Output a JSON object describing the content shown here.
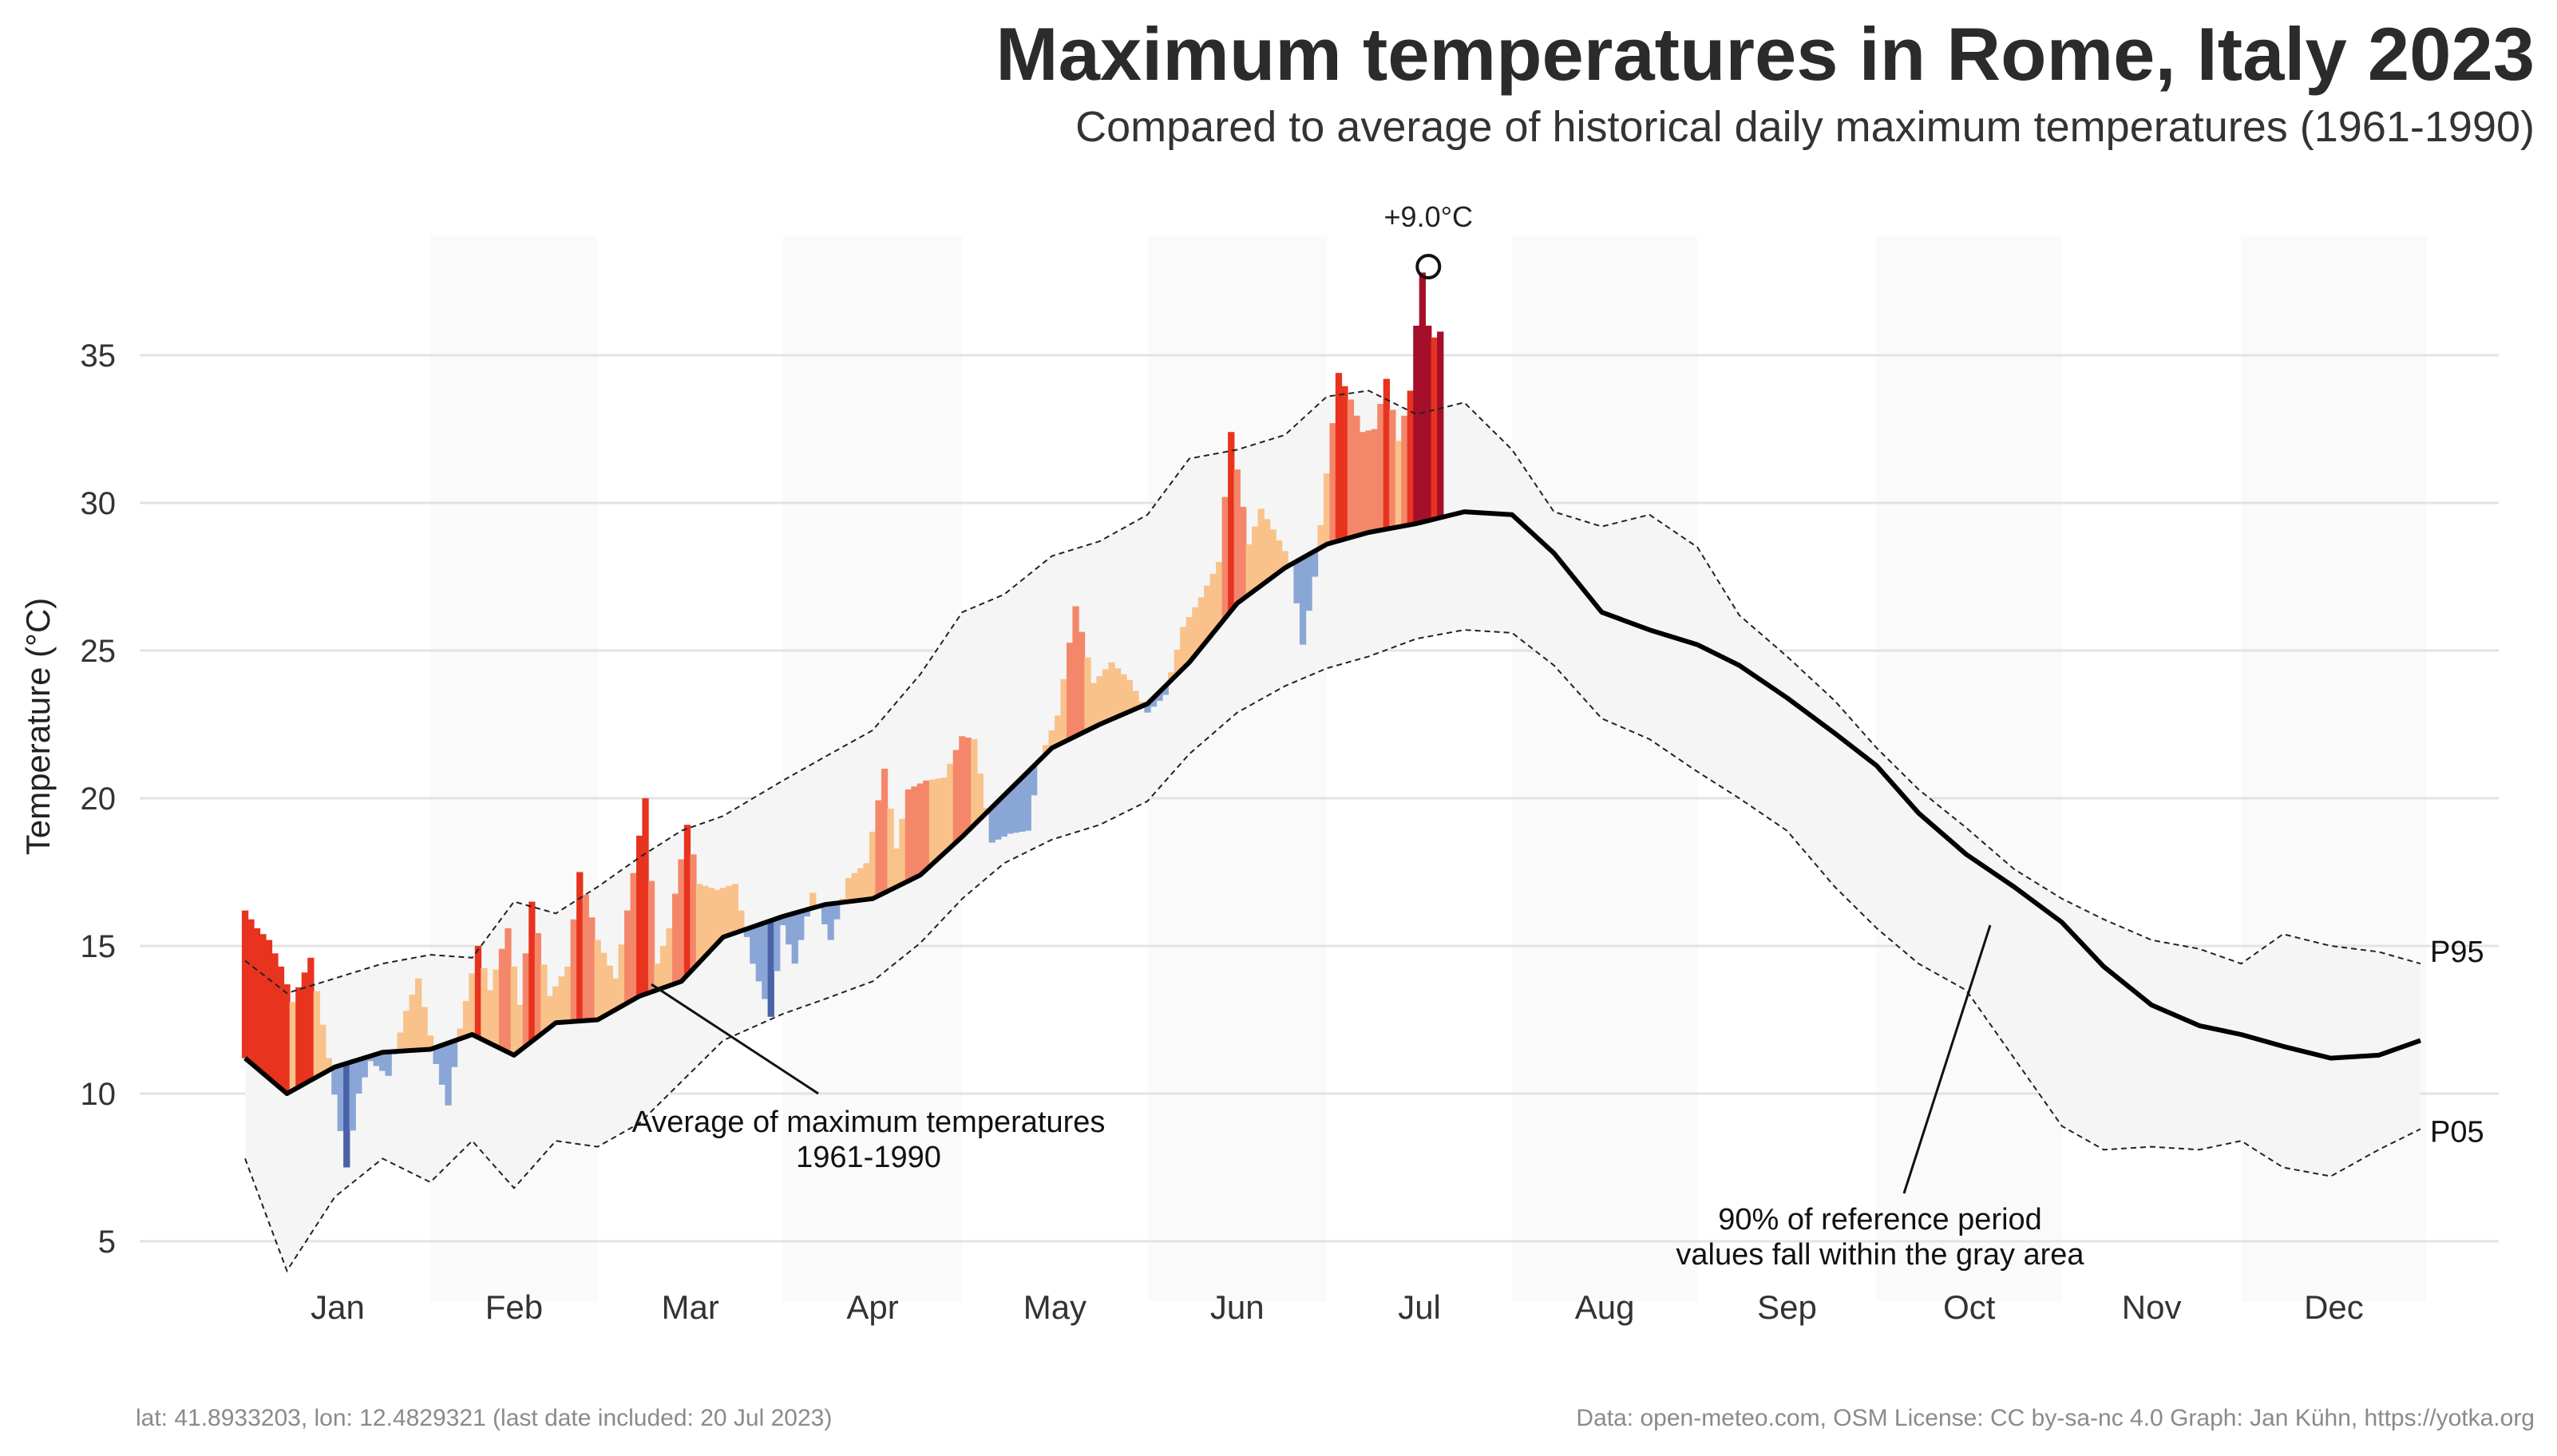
{
  "title": "Maximum temperatures in Rome, Italy 2023",
  "subtitle": "Compared to average of historical daily maximum temperatures (1961-1990)",
  "footer": {
    "left": "lat: 41.8933203, lon: 12.4829321 (last date included: 20 Jul 2023)",
    "right": "Data: open-meteo.com, OSM  License: CC by-sa-nc 4.0  Graph: Jan Kühn, https://yotka.org"
  },
  "colors": {
    "above_light": "#f9c28a",
    "above_mid": "#f4876a",
    "above_strong": "#e8331f",
    "above_extreme": "#a50f2a",
    "below_light": "#8aa6d6",
    "below_strong": "#1a2d7a",
    "band": "#f5f5f5",
    "mean": "#000000"
  },
  "chart_data": {
    "type": "area",
    "ylabel": "Temperature (°C)",
    "ylim": [
      3.5,
      38.5
    ],
    "yticks": [
      5,
      10,
      15,
      20,
      25,
      30,
      35
    ],
    "months": [
      "Jan",
      "Feb",
      "Mar",
      "Apr",
      "May",
      "Jun",
      "Jul",
      "Aug",
      "Sep",
      "Oct",
      "Nov",
      "Dec"
    ],
    "grid": "horizontal",
    "shaded_months": [
      "Feb",
      "Apr",
      "Jun",
      "Aug",
      "Oct",
      "Dec"
    ],
    "series": [
      {
        "name": "Average of maximum temperatures 1961-1990",
        "x": [
          "2023-01-01",
          "2023-01-08",
          "2023-01-16",
          "2023-01-24",
          "2023-02-01",
          "2023-02-08",
          "2023-02-15",
          "2023-02-22",
          "2023-03-01",
          "2023-03-08",
          "2023-03-15",
          "2023-03-22",
          "2023-04-01",
          "2023-04-08",
          "2023-04-16",
          "2023-04-24",
          "2023-05-01",
          "2023-05-08",
          "2023-05-16",
          "2023-05-24",
          "2023-06-01",
          "2023-06-08",
          "2023-06-16",
          "2023-06-24",
          "2023-07-01",
          "2023-07-08",
          "2023-07-16",
          "2023-07-24",
          "2023-08-01",
          "2023-08-08",
          "2023-08-16",
          "2023-08-24",
          "2023-09-01",
          "2023-09-08",
          "2023-09-16",
          "2023-09-24",
          "2023-10-01",
          "2023-10-08",
          "2023-10-16",
          "2023-10-24",
          "2023-11-01",
          "2023-11-08",
          "2023-11-16",
          "2023-11-24",
          "2023-12-01",
          "2023-12-08",
          "2023-12-16",
          "2023-12-24",
          "2023-12-31"
        ],
        "values": [
          11.2,
          10.0,
          10.9,
          11.4,
          11.5,
          12.0,
          11.3,
          12.4,
          12.5,
          13.3,
          13.8,
          15.3,
          16.0,
          16.4,
          16.6,
          17.4,
          18.7,
          20.1,
          21.7,
          22.5,
          23.2,
          24.6,
          26.6,
          27.8,
          28.6,
          29.0,
          29.3,
          29.7,
          29.6,
          28.3,
          26.3,
          25.7,
          25.2,
          24.5,
          23.4,
          22.2,
          21.1,
          19.5,
          18.1,
          17.0,
          15.8,
          14.3,
          13.0,
          12.3,
          12.0,
          11.6,
          11.2,
          11.3,
          11.8
        ]
      },
      {
        "name": "P95",
        "x": [
          "2023-01-01",
          "2023-01-08",
          "2023-01-16",
          "2023-01-24",
          "2023-02-01",
          "2023-02-08",
          "2023-02-15",
          "2023-02-22",
          "2023-03-01",
          "2023-03-08",
          "2023-03-15",
          "2023-03-22",
          "2023-04-01",
          "2023-04-08",
          "2023-04-16",
          "2023-04-24",
          "2023-05-01",
          "2023-05-08",
          "2023-05-16",
          "2023-05-24",
          "2023-06-01",
          "2023-06-08",
          "2023-06-16",
          "2023-06-24",
          "2023-07-01",
          "2023-07-08",
          "2023-07-16",
          "2023-07-24",
          "2023-08-01",
          "2023-08-08",
          "2023-08-16",
          "2023-08-24",
          "2023-09-01",
          "2023-09-08",
          "2023-09-16",
          "2023-09-24",
          "2023-10-01",
          "2023-10-08",
          "2023-10-16",
          "2023-10-24",
          "2023-11-01",
          "2023-11-08",
          "2023-11-16",
          "2023-11-24",
          "2023-12-01",
          "2023-12-08",
          "2023-12-16",
          "2023-12-24",
          "2023-12-31"
        ],
        "values": [
          14.5,
          13.4,
          13.9,
          14.4,
          14.7,
          14.6,
          16.5,
          16.1,
          17.0,
          18.0,
          18.9,
          19.4,
          20.6,
          21.4,
          22.3,
          24.2,
          26.3,
          26.9,
          28.2,
          28.7,
          29.6,
          31.5,
          31.8,
          32.3,
          33.6,
          33.8,
          33.0,
          33.4,
          31.8,
          29.7,
          29.2,
          29.6,
          28.5,
          26.2,
          24.8,
          23.3,
          21.7,
          20.3,
          19.0,
          17.6,
          16.6,
          15.9,
          15.2,
          14.9,
          14.4,
          15.4,
          15.0,
          14.8,
          14.4
        ]
      },
      {
        "name": "P05",
        "x": [
          "2023-01-01",
          "2023-01-08",
          "2023-01-16",
          "2023-01-24",
          "2023-02-01",
          "2023-02-08",
          "2023-02-15",
          "2023-02-22",
          "2023-03-01",
          "2023-03-08",
          "2023-03-15",
          "2023-03-22",
          "2023-04-01",
          "2023-04-08",
          "2023-04-16",
          "2023-04-24",
          "2023-05-01",
          "2023-05-08",
          "2023-05-16",
          "2023-05-24",
          "2023-06-01",
          "2023-06-08",
          "2023-06-16",
          "2023-06-24",
          "2023-07-01",
          "2023-07-08",
          "2023-07-16",
          "2023-07-24",
          "2023-08-01",
          "2023-08-08",
          "2023-08-16",
          "2023-08-24",
          "2023-09-01",
          "2023-09-08",
          "2023-09-16",
          "2023-09-24",
          "2023-10-01",
          "2023-10-08",
          "2023-10-16",
          "2023-10-24",
          "2023-11-01",
          "2023-11-08",
          "2023-11-16",
          "2023-11-24",
          "2023-12-01",
          "2023-12-08",
          "2023-12-16",
          "2023-12-24",
          "2023-12-31"
        ],
        "values": [
          7.8,
          4.0,
          6.5,
          7.8,
          7.0,
          8.4,
          6.8,
          8.4,
          8.2,
          9.0,
          10.4,
          11.8,
          12.7,
          13.2,
          13.8,
          15.1,
          16.6,
          17.8,
          18.6,
          19.1,
          19.9,
          21.5,
          22.9,
          23.8,
          24.4,
          24.8,
          25.4,
          25.7,
          25.6,
          24.5,
          22.7,
          22.0,
          20.9,
          20.0,
          18.9,
          17.0,
          15.6,
          14.4,
          13.5,
          11.2,
          8.9,
          8.1,
          8.2,
          8.1,
          8.4,
          7.5,
          7.2,
          8.1,
          8.8
        ]
      },
      {
        "name": "2023",
        "x": [
          "2023-01-01",
          "2023-01-03",
          "2023-01-05",
          "2023-01-07",
          "2023-01-09",
          "2023-01-12",
          "2023-01-15",
          "2023-01-18",
          "2023-01-20",
          "2023-01-22",
          "2023-01-25",
          "2023-01-28",
          "2023-01-30",
          "2023-02-02",
          "2023-02-04",
          "2023-02-06",
          "2023-02-09",
          "2023-02-11",
          "2023-02-14",
          "2023-02-16",
          "2023-02-18",
          "2023-02-21",
          "2023-02-24",
          "2023-02-26",
          "2023-03-01",
          "2023-03-04",
          "2023-03-06",
          "2023-03-09",
          "2023-03-11",
          "2023-03-13",
          "2023-03-16",
          "2023-03-18",
          "2023-03-21",
          "2023-03-24",
          "2023-03-27",
          "2023-03-30",
          "2023-04-01",
          "2023-04-03",
          "2023-04-06",
          "2023-04-09",
          "2023-04-12",
          "2023-04-15",
          "2023-04-18",
          "2023-04-20",
          "2023-04-22",
          "2023-04-25",
          "2023-04-28",
          "2023-05-01",
          "2023-05-03",
          "2023-05-06",
          "2023-05-09",
          "2023-05-12",
          "2023-05-14",
          "2023-05-17",
          "2023-05-20",
          "2023-05-23",
          "2023-05-26",
          "2023-05-29",
          "2023-06-01",
          "2023-06-04",
          "2023-06-07",
          "2023-06-10",
          "2023-06-13",
          "2023-06-15",
          "2023-06-18",
          "2023-06-20",
          "2023-06-22",
          "2023-06-25",
          "2023-06-27",
          "2023-06-29",
          "2023-07-01",
          "2023-07-03",
          "2023-07-05",
          "2023-07-07",
          "2023-07-09",
          "2023-07-11",
          "2023-07-13",
          "2023-07-15",
          "2023-07-16",
          "2023-07-17",
          "2023-07-18",
          "2023-07-19",
          "2023-07-20"
        ],
        "values": [
          16.2,
          15.6,
          15.2,
          14.3,
          13.1,
          14.6,
          11.2,
          7.5,
          10.0,
          11.1,
          10.6,
          12.8,
          13.9,
          11.0,
          9.6,
          12.2,
          15.0,
          13.5,
          15.6,
          13.0,
          16.5,
          13.3,
          14.3,
          17.5,
          15.2,
          13.9,
          16.2,
          20.0,
          14.4,
          15.6,
          19.1,
          17.1,
          16.9,
          17.1,
          14.4,
          12.6,
          15.7,
          14.4,
          16.8,
          15.2,
          17.3,
          17.8,
          21.0,
          18.3,
          20.3,
          20.6,
          20.7,
          22.1,
          22.0,
          18.5,
          18.8,
          18.9,
          21.3,
          22.8,
          26.5,
          23.9,
          24.6,
          24.0,
          22.9,
          23.5,
          25.8,
          26.8,
          28.0,
          32.4,
          28.6,
          29.8,
          29.1,
          28.0,
          25.2,
          27.5,
          31.0,
          34.4,
          33.5,
          32.4,
          32.5,
          34.2,
          32.1,
          33.8,
          36.0,
          37.8,
          36.0,
          35.6,
          35.8
        ]
      }
    ],
    "annotations": [
      {
        "text": "+9.0°C",
        "x": "2023-07-18",
        "y": 38.0
      },
      {
        "text": "Average of maximum temperatures",
        "text2": "1961-1990",
        "x": "2023-03-10",
        "y": 13.7
      },
      {
        "text": "90% of reference period",
        "text2": "values fall within the gray area",
        "x": "2023-10-20",
        "y": 15.7
      }
    ],
    "end_labels": [
      "P95",
      "P05"
    ]
  }
}
